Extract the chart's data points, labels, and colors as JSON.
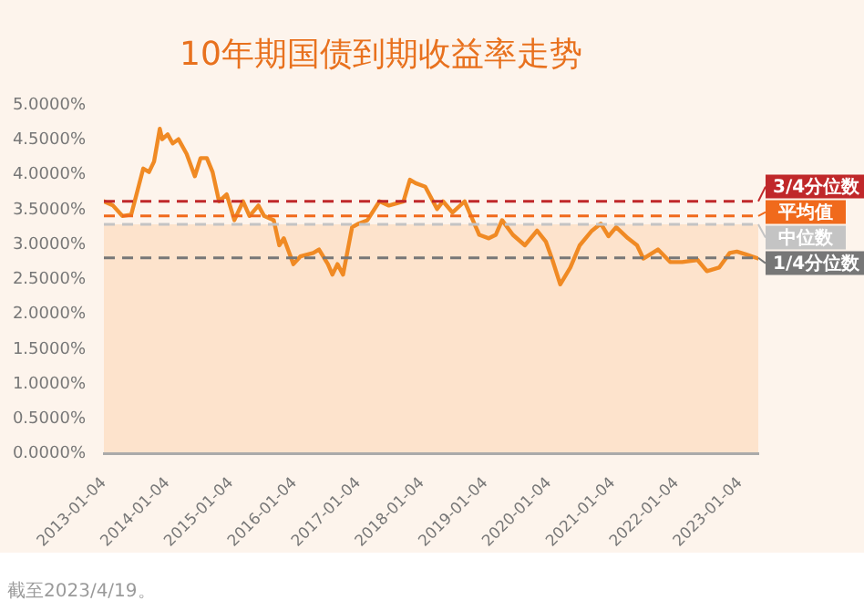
{
  "chart_data": {
    "type": "line",
    "title": "10年期国债到期收益率走势",
    "x": [
      "2013-01-04",
      "2013-02-25",
      "2013-04-20",
      "2013-06-10",
      "2013-08-18",
      "2013-09-20",
      "2013-10-19",
      "2013-11-21",
      "2013-12-05",
      "2014-01-05",
      "2014-02-03",
      "2014-03-08",
      "2014-04-24",
      "2014-06-10",
      "2014-07-13",
      "2014-08-18",
      "2014-09-20",
      "2014-10-27",
      "2014-12-10",
      "2015-01-23",
      "2015-03-14",
      "2015-04-20",
      "2015-06-10",
      "2015-07-13",
      "2015-09-06",
      "2015-10-08",
      "2015-11-03",
      "2015-12-28",
      "2016-02-06",
      "2016-04-20",
      "2016-05-23",
      "2016-07-13",
      "2016-08-08",
      "2016-09-06",
      "2016-10-08",
      "2016-11-29",
      "2017-01-05",
      "2017-02-25",
      "2017-05-05",
      "2017-06-28",
      "2017-09-20",
      "2017-10-27",
      "2017-11-29",
      "2018-01-23",
      "2018-04-01",
      "2018-05-05",
      "2018-06-28",
      "2018-09-06",
      "2018-11-29",
      "2019-01-23",
      "2019-03-04",
      "2019-04-09",
      "2019-06-10",
      "2019-08-18",
      "2019-10-27",
      "2019-12-17",
      "2020-01-23",
      "2020-03-08",
      "2020-05-05",
      "2020-06-28",
      "2020-09-06",
      "2020-10-27",
      "2020-12-10",
      "2021-01-23",
      "2021-04-01",
      "2021-05-23",
      "2021-06-28",
      "2021-09-20",
      "2021-11-29",
      "2022-02-06",
      "2022-05-05",
      "2022-06-28",
      "2022-09-06",
      "2022-11-06",
      "2022-12-17",
      "2023-02-06",
      "2023-04-19"
    ],
    "series": [
      {
        "color": "#f08a24",
        "values": [
          3.62,
          3.56,
          3.41,
          3.43,
          4.09,
          4.04,
          4.19,
          4.66,
          4.51,
          4.58,
          4.45,
          4.51,
          4.3,
          3.98,
          4.24,
          4.24,
          4.04,
          3.62,
          3.72,
          3.35,
          3.62,
          3.41,
          3.56,
          3.41,
          3.35,
          2.99,
          3.09,
          2.72,
          2.83,
          2.88,
          2.93,
          2.72,
          2.57,
          2.72,
          2.57,
          3.25,
          3.3,
          3.35,
          3.62,
          3.56,
          3.62,
          3.93,
          3.88,
          3.83,
          3.51,
          3.62,
          3.46,
          3.62,
          3.14,
          3.09,
          3.14,
          3.35,
          3.14,
          2.99,
          3.2,
          3.04,
          2.78,
          2.43,
          2.67,
          2.99,
          3.2,
          3.3,
          3.12,
          3.25,
          3.09,
          2.99,
          2.8,
          2.93,
          2.75,
          2.75,
          2.78,
          2.62,
          2.67,
          2.88,
          2.9,
          2.86,
          2.8
        ]
      }
    ],
    "xlim": [
      "2013-01-04",
      "2023-04-19"
    ],
    "xticks": [
      "2013-01-04",
      "2014-01-04",
      "2015-01-04",
      "2016-01-04",
      "2017-01-04",
      "2018-01-04",
      "2019-01-04",
      "2020-01-04",
      "2021-01-04",
      "2022-01-04",
      "2023-01-04"
    ],
    "ylim": [
      0,
      5
    ],
    "yticks": [
      {
        "value": 0,
        "label": "0.0000%"
      },
      {
        "value": 0.5,
        "label": "0.5000%"
      },
      {
        "value": 1,
        "label": "1.0000%"
      },
      {
        "value": 1.5,
        "label": "1.5000%"
      },
      {
        "value": 2,
        "label": "2.0000%"
      },
      {
        "value": 2.5,
        "label": "2.5000%"
      },
      {
        "value": 3,
        "label": "3.0000%"
      },
      {
        "value": 3.5,
        "label": "3.5000%"
      },
      {
        "value": 4,
        "label": "4.0000%"
      },
      {
        "value": 4.5,
        "label": "4.5000%"
      },
      {
        "value": 5,
        "label": "5.0000%"
      }
    ],
    "ref_lines": [
      {
        "axis": "y",
        "value": 3.62,
        "label": "3/4分位数",
        "color": "#c0282a",
        "line_style": "dashed"
      },
      {
        "axis": "y",
        "value": 3.41,
        "label": "平均值",
        "color": "#f06a1c",
        "line_style": "dashed"
      },
      {
        "axis": "y",
        "value": 3.29,
        "label": "中位数",
        "color": "#c4c4c4",
        "line_style": "dashed"
      },
      {
        "axis": "y",
        "value": 2.81,
        "label": "1/4分位数",
        "color": "#777777",
        "line_style": "dashed"
      }
    ],
    "bands": [
      {
        "axis": "y",
        "from": 0,
        "to": 3.29,
        "color": "#fde3cc"
      }
    ],
    "annotations": [
      "截至2023/4/19。"
    ],
    "grid": false,
    "legend": false,
    "marker": "none",
    "line_style": "solid"
  }
}
